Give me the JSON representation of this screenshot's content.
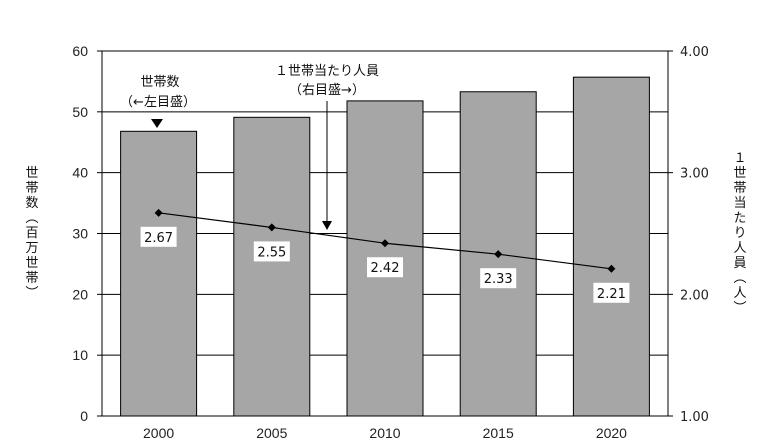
{
  "chart_data": {
    "type": "bar",
    "categories": [
      "2000",
      "2005",
      "2010",
      "2015",
      "2020"
    ],
    "series": [
      {
        "values": [
          46.8,
          49.1,
          51.8,
          53.3,
          55.7
        ],
        "axis": "left",
        "mark": "bar"
      },
      {
        "values": [
          2.67,
          2.55,
          2.42,
          2.33,
          2.21
        ],
        "axis": "right",
        "mark": "line",
        "data_labels": [
          "2.67",
          "2.55",
          "2.42",
          "2.33",
          "2.21"
        ]
      }
    ],
    "left_axis": {
      "label": "世帯数（百万世帯）",
      "ylim": [
        0,
        60
      ],
      "ticks": [
        "0",
        "10",
        "20",
        "30",
        "40",
        "50",
        "60"
      ]
    },
    "right_axis": {
      "label": "１世帯当たり人員（人）",
      "ylim": [
        1.0,
        4.0
      ],
      "ticks": [
        "1.00",
        "2.00",
        "3.00",
        "4.00"
      ]
    },
    "annotations": {
      "households": [
        "世帯数",
        "（←左目盛）"
      ],
      "persons": [
        "１世帯当たり人員",
        "（右目盛→）"
      ]
    },
    "grid": true,
    "colors": {
      "bar": "#a6a6a6",
      "bar_edge": "#000000",
      "line": "#000000"
    }
  }
}
